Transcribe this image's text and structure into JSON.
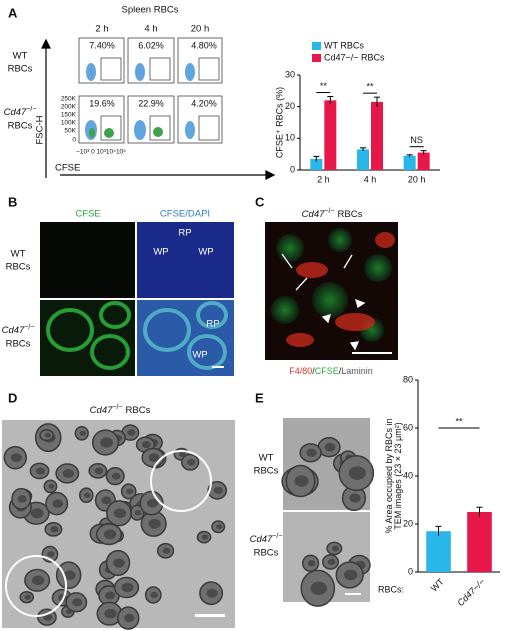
{
  "panel_a": {
    "label": "A",
    "title": "Spleen RBCs",
    "time_headers": [
      "2 h",
      "4 h",
      "20 h"
    ],
    "row_wt": {
      "genotype": "WT",
      "cell": "RBCs"
    },
    "row_ko": {
      "gene": "Cd47",
      "sup": "−/−",
      "cell": "RBCs"
    },
    "percent_wt": [
      "7.40%",
      "6.02%",
      "4.80%"
    ],
    "percent_ko": [
      "19.6%",
      "22.9%",
      "4.20%"
    ],
    "y_axis_label": "FSC-H",
    "y_axis_ticks": [
      "250K",
      "200K",
      "150K",
      "100K",
      "50K",
      "0"
    ],
    "x_axis_ticks": "−10³ 0 10³10⁴10⁵",
    "x_axis_label": "CFSE"
  },
  "panel_b": {
    "label": "B",
    "header_1": "CFSE",
    "header_2": "CFSE/DAPI",
    "row_wt": {
      "genotype": "WT",
      "cell": "RBCs"
    },
    "row_ko": {
      "gene": "Cd47",
      "sup": "−/−",
      "cell": "RBCs"
    },
    "region_labels": [
      "RP",
      "WP",
      "WP",
      "RP",
      "WP"
    ]
  },
  "panel_c": {
    "label": "C",
    "title": {
      "gene": "Cd47",
      "sup": "−/−",
      "cell": "RBCs"
    },
    "stain_1": "F4/80",
    "sep_1": "/",
    "stain_2": "CFSE",
    "sep_2": "/",
    "stain_3": "Laminin"
  },
  "panel_d": {
    "label": "D",
    "title": {
      "gene": "Cd47",
      "sup": "−/−",
      "cell": "RBCs"
    }
  },
  "panel_e": {
    "label": "E",
    "row_wt": {
      "genotype": "WT",
      "cell": "RBCs"
    },
    "row_ko": {
      "gene": "Cd47",
      "sup": "−/−",
      "cell": "RBCs"
    }
  },
  "chart_data": [
    {
      "type": "bar",
      "y_label": "CFSE⁺ RBCs (%)",
      "categories": [
        "2 h",
        "4 h",
        "20 h"
      ],
      "series": [
        {
          "name": "WT RBCs",
          "color": "#29b6e8",
          "values": [
            3.5,
            6.5,
            4.5
          ],
          "errors": [
            0.8,
            0.5,
            0.3
          ]
        },
        {
          "name": "Cd47−/− RBCs",
          "color": "#e8174a",
          "values": [
            22,
            21.5,
            5.5
          ],
          "errors": [
            1.2,
            1.5,
            0.6
          ]
        }
      ],
      "annotations": [
        "**",
        "**",
        "NS"
      ],
      "ylim": [
        0,
        30
      ],
      "yticks": [
        0,
        10,
        20,
        30
      ]
    },
    {
      "type": "bar",
      "y_label": "% Area occupied by RBCs in TEM images (23 × 23 μm²)",
      "x_label": "RBCs:",
      "categories": [
        "WT",
        "Cd47−/−"
      ],
      "values": [
        17,
        25
      ],
      "errors": [
        2,
        2
      ],
      "colors": [
        "#29b6e8",
        "#e8174a"
      ],
      "annotation": "**",
      "ylim": [
        0,
        80
      ],
      "yticks": [
        0,
        20,
        40,
        60,
        80
      ]
    }
  ]
}
